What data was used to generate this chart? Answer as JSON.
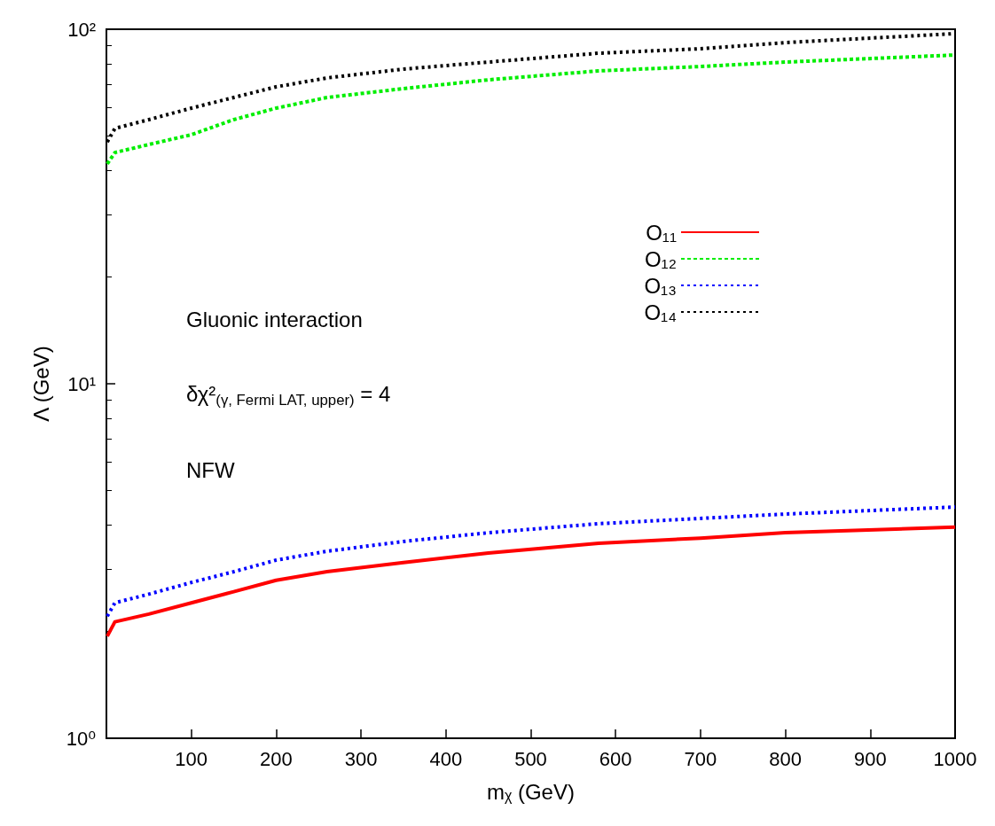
{
  "chart_data": {
    "type": "line",
    "xlabel": "mᵪ (GeV)",
    "ylabel": "Λ (GeV)",
    "log": "y",
    "xlim": [
      0,
      1000
    ],
    "xticks": [
      100,
      200,
      300,
      400,
      500,
      600,
      700,
      800,
      900,
      1000
    ],
    "ylim": [
      1,
      100
    ],
    "yticks": [
      {
        "value": 1,
        "label": "10⁰"
      },
      {
        "value": 10,
        "label": "10¹"
      },
      {
        "value": 100,
        "label": "10²"
      }
    ],
    "x": [
      1,
      10,
      50,
      100,
      150,
      200,
      260,
      350,
      450,
      580,
      700,
      800,
      1000
    ],
    "grid": false,
    "legend": "right",
    "marker": "none",
    "series": [
      {
        "name": "O₁₁",
        "color": "#ff0000",
        "line_style": "solid",
        "values": [
          1.94,
          2.13,
          2.24,
          2.41,
          2.59,
          2.79,
          2.95,
          3.13,
          3.33,
          3.55,
          3.67,
          3.8,
          3.94
        ]
      },
      {
        "name": "O₁₂",
        "color": "#00ee00",
        "line_style": "dashed",
        "values": [
          41.7,
          44.9,
          47.3,
          50.4,
          55.6,
          59.9,
          64.2,
          68,
          72,
          76.3,
          78.5,
          80.8,
          84.6
        ]
      },
      {
        "name": "O₁₃",
        "color": "#0000ff",
        "line_style": "dotted",
        "values": [
          2.21,
          2.41,
          2.55,
          2.75,
          2.95,
          3.18,
          3.37,
          3.59,
          3.8,
          4.03,
          4.17,
          4.29,
          4.49
        ]
      },
      {
        "name": "O₁₄",
        "color": "#000000",
        "line_style": "dotted",
        "values": [
          48.1,
          52.5,
          55.6,
          59.9,
          64.2,
          68.8,
          72.9,
          77.2,
          80.8,
          85.6,
          88.1,
          91.7,
          97.2
        ]
      }
    ],
    "annotations": [
      "Gluonic interaction",
      "δχ²$_{(γ, Fermi LAT, upper)}$ = 4",
      "NFW"
    ]
  }
}
